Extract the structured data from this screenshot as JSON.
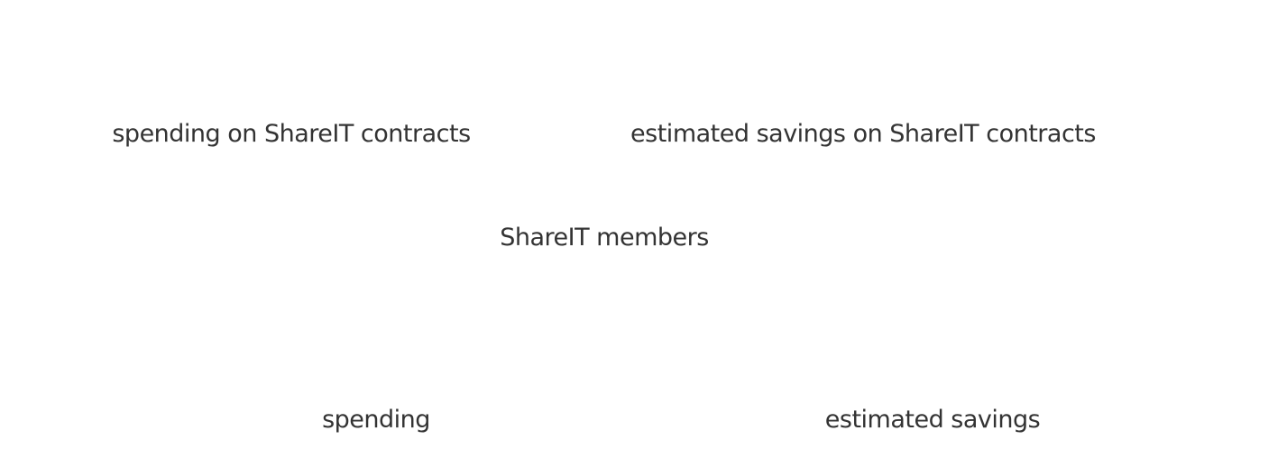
{
  "stats": {
    "top": [
      "spending on ShareIT contracts",
      "estimated savings on ShareIT contracts"
    ],
    "middle": "ShareIT members",
    "bottom": [
      "spending",
      "estimated savings"
    ]
  }
}
